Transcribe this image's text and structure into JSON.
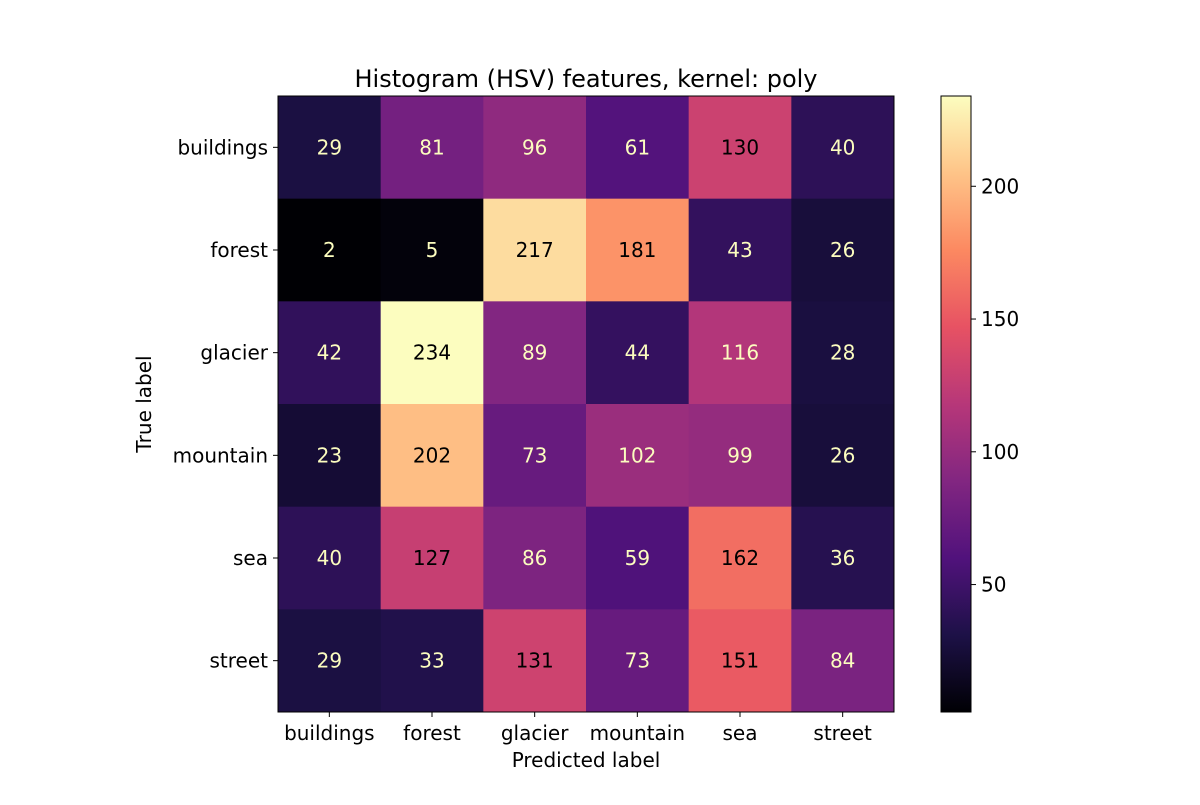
{
  "chart_data": {
    "type": "heatmap",
    "title": "Histogram (HSV) features, kernel: poly",
    "xlabel": "Predicted label",
    "ylabel": "True label",
    "x_categories": [
      "buildings",
      "forest",
      "glacier",
      "mountain",
      "sea",
      "street"
    ],
    "y_categories": [
      "buildings",
      "forest",
      "glacier",
      "mountain",
      "sea",
      "street"
    ],
    "values": [
      [
        29,
        81,
        96,
        61,
        130,
        40
      ],
      [
        2,
        5,
        217,
        181,
        43,
        26
      ],
      [
        42,
        234,
        89,
        44,
        116,
        28
      ],
      [
        23,
        202,
        73,
        102,
        99,
        26
      ],
      [
        40,
        127,
        86,
        59,
        162,
        36
      ],
      [
        29,
        33,
        131,
        73,
        151,
        84
      ]
    ],
    "colormap": "magma",
    "value_range": [
      2,
      234
    ],
    "colorbar_ticks": [
      50,
      100,
      150,
      200
    ],
    "colorbar_tick_labels": [
      "50",
      "100",
      "150",
      "200"
    ]
  }
}
